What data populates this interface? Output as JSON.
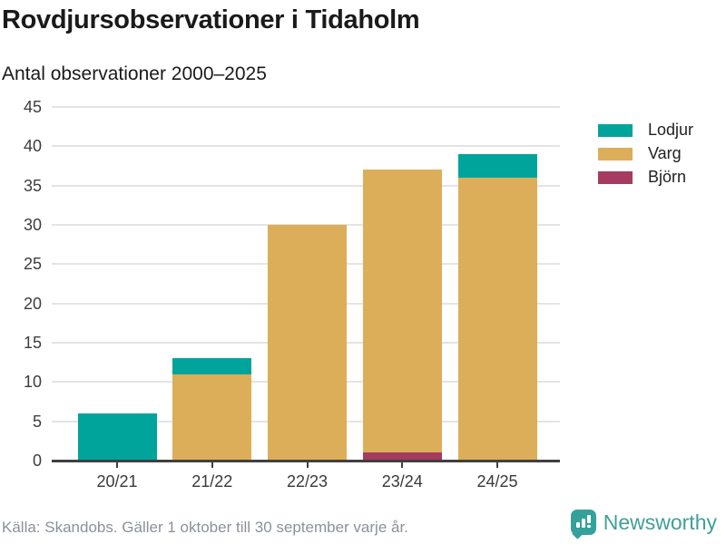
{
  "chart_data": {
    "type": "bar",
    "stacked": true,
    "title": "Rovdjursobservationer i Tidaholm",
    "subtitle": "Antal observationer 2000–2025",
    "categories": [
      "20/21",
      "21/22",
      "22/23",
      "23/24",
      "24/25"
    ],
    "series": [
      {
        "name": "Lodjur",
        "color": "#00a49b",
        "values": [
          6,
          2,
          0,
          0,
          3
        ]
      },
      {
        "name": "Varg",
        "color": "#dcae59",
        "values": [
          0,
          11,
          30,
          36,
          36
        ]
      },
      {
        "name": "Björn",
        "color": "#a53b60",
        "values": [
          0,
          0,
          0,
          1,
          0
        ]
      }
    ],
    "stack_order_bottom_to_top": [
      "Björn",
      "Varg",
      "Lodjur"
    ],
    "totals": [
      6,
      13,
      30,
      37,
      39
    ],
    "ylim": [
      0,
      45
    ],
    "yticks": [
      0,
      5,
      10,
      15,
      20,
      25,
      30,
      35,
      40,
      45
    ],
    "grid": true,
    "legend_position": "right"
  },
  "footer": {
    "source": "Källa: Skandobs. Gäller 1 oktober till 30 september varje år.",
    "brand": "Newsworthy"
  },
  "colors": {
    "lodjur": "#00a49b",
    "varg": "#dcae59",
    "bjorn": "#a53b60",
    "brand_teal": "#3fa09a",
    "grid": "#e4e4e4",
    "axis": "#404040",
    "text": "#1a1a1a",
    "muted": "#8b919b"
  }
}
